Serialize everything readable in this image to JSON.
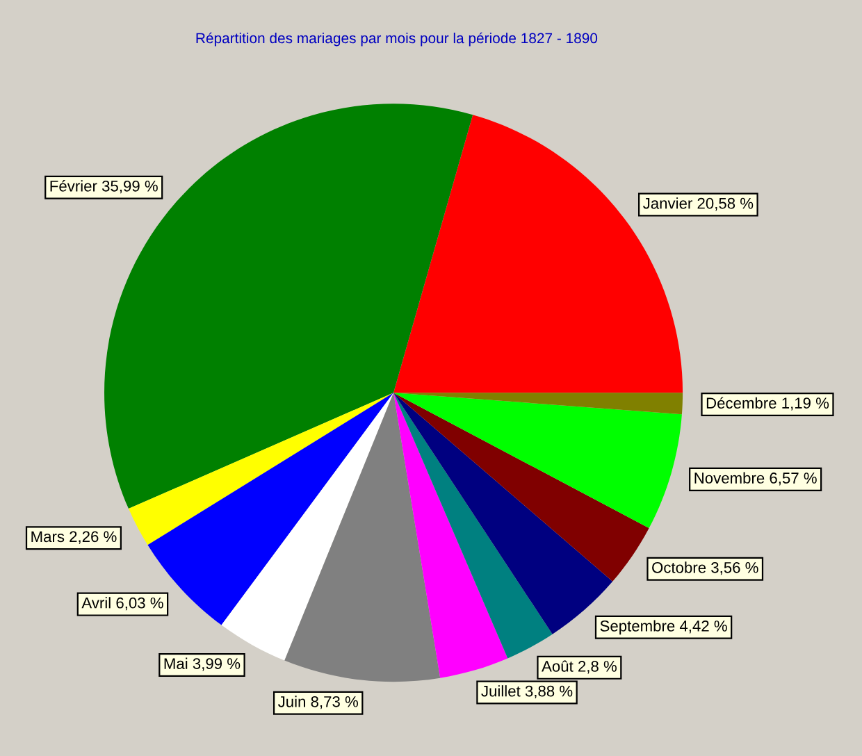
{
  "chart_data": {
    "type": "pie",
    "title": "Répartition des mariages par mois pour la période 1827 - 1890",
    "categories": [
      "Janvier",
      "Février",
      "Mars",
      "Avril",
      "Mai",
      "Juin",
      "Juillet",
      "Août",
      "Septembre",
      "Octobre",
      "Novembre",
      "Décembre"
    ],
    "values": [
      20.58,
      35.99,
      2.26,
      6.03,
      3.99,
      8.73,
      3.88,
      2.8,
      4.42,
      3.56,
      6.57,
      1.19
    ],
    "value_labels": [
      "20,58 %",
      "35,99 %",
      "2,26 %",
      "6,03 %",
      "3,99 %",
      "8,73 %",
      "3,88 %",
      "2,8 %",
      "4,42 %",
      "3,56 %",
      "6,57 %",
      "1,19 %"
    ],
    "colors": [
      "#ff0000",
      "#008000",
      "#ffff00",
      "#0000ff",
      "#ffffff",
      "#808080",
      "#ff00ff",
      "#008080",
      "#000080",
      "#800000",
      "#00ff00",
      "#808000"
    ],
    "legend": false
  }
}
